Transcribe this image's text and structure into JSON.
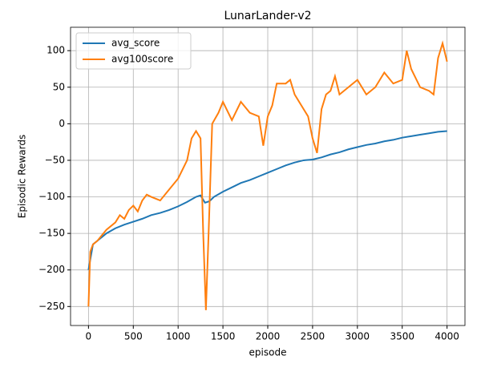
{
  "chart_data": {
    "type": "line",
    "title": "LunarLander-v2",
    "xlabel": "episode",
    "ylabel": "Episodic Rewards",
    "xlim": [
      -200,
      4200
    ],
    "ylim": [
      -276,
      132
    ],
    "xticks": [
      0,
      500,
      1000,
      1500,
      2000,
      2500,
      3000,
      3500,
      4000
    ],
    "yticks": [
      {
        "value": -250,
        "label": "−250"
      },
      {
        "value": -200,
        "label": "−200"
      },
      {
        "value": -150,
        "label": "−150"
      },
      {
        "value": -100,
        "label": "−100"
      },
      {
        "value": -50,
        "label": "−50"
      },
      0,
      50,
      100
    ],
    "grid": true,
    "legend": "upper left",
    "series": [
      {
        "name": "avg_score",
        "color": "#1f77b4",
        "x": [
          0,
          50,
          100,
          200,
          300,
          400,
          500,
          600,
          700,
          800,
          900,
          1000,
          1100,
          1200,
          1250,
          1300,
          1350,
          1400,
          1500,
          1600,
          1700,
          1800,
          1900,
          2000,
          2100,
          2200,
          2300,
          2400,
          2500,
          2600,
          2700,
          2800,
          2900,
          3000,
          3100,
          3200,
          3300,
          3400,
          3500,
          3600,
          3700,
          3800,
          3900,
          4000
        ],
        "values": [
          -200,
          -165,
          -160,
          -150,
          -143,
          -138,
          -134,
          -130,
          -125,
          -122,
          -118,
          -113,
          -107,
          -100,
          -98,
          -108,
          -106,
          -100,
          -93,
          -87,
          -81,
          -77,
          -72,
          -67,
          -62,
          -57,
          -53,
          -50,
          -49,
          -46,
          -42,
          -39,
          -35,
          -32,
          -29,
          -27,
          -24,
          -22,
          -19,
          -17,
          -15,
          -13,
          -11,
          -10
        ]
      },
      {
        "name": "avg100score",
        "color": "#ff7f0e",
        "x": [
          0,
          20,
          50,
          100,
          200,
          300,
          350,
          400,
          450,
          500,
          550,
          600,
          650,
          700,
          800,
          900,
          1000,
          1100,
          1150,
          1200,
          1250,
          1280,
          1310,
          1340,
          1380,
          1450,
          1500,
          1600,
          1700,
          1800,
          1900,
          1950,
          2000,
          2050,
          2100,
          2200,
          2250,
          2300,
          2400,
          2450,
          2500,
          2550,
          2600,
          2650,
          2700,
          2750,
          2800,
          2900,
          3000,
          3100,
          3200,
          3300,
          3400,
          3500,
          3550,
          3600,
          3700,
          3800,
          3850,
          3900,
          3950,
          4000
        ],
        "values": [
          -250,
          -175,
          -165,
          -160,
          -145,
          -135,
          -125,
          -130,
          -118,
          -112,
          -120,
          -105,
          -97,
          -100,
          -105,
          -90,
          -75,
          -50,
          -20,
          -10,
          -20,
          -150,
          -255,
          -150,
          0,
          15,
          30,
          5,
          30,
          15,
          10,
          -30,
          10,
          25,
          55,
          55,
          60,
          40,
          20,
          10,
          -20,
          -40,
          20,
          40,
          45,
          65,
          40,
          50,
          60,
          40,
          50,
          70,
          55,
          60,
          100,
          75,
          50,
          45,
          40,
          90,
          110,
          85
        ]
      }
    ]
  }
}
